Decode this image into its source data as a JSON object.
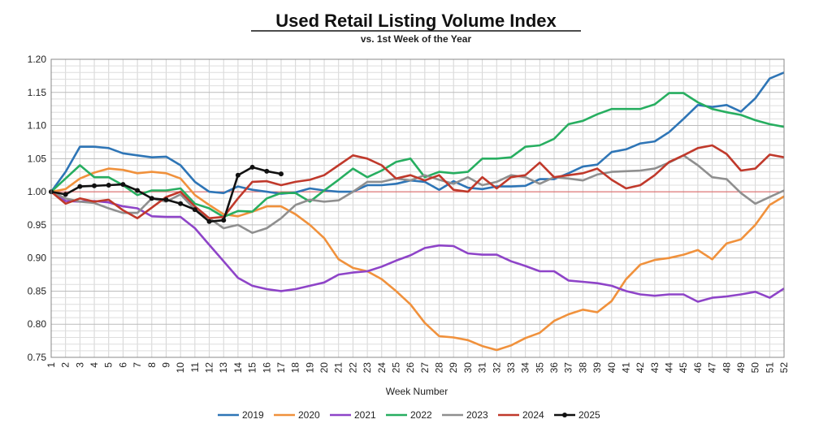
{
  "chart_data": {
    "type": "line",
    "title": "Used Retail Listing Volume Index",
    "subtitle": "vs. 1st Week of the Year",
    "xlabel": "Week Number",
    "ylabel": "",
    "xlim": [
      1,
      52
    ],
    "ylim": [
      0.75,
      1.2
    ],
    "y_ticks": [
      "0.75",
      "0.80",
      "0.85",
      "0.90",
      "0.95",
      "1.00",
      "1.05",
      "1.10",
      "1.15",
      "1.20"
    ],
    "x_ticks": [
      "1",
      "2",
      "3",
      "4",
      "5",
      "6",
      "7",
      "8",
      "9",
      "10",
      "11",
      "12",
      "13",
      "14",
      "15",
      "16",
      "17",
      "18",
      "19",
      "20",
      "21",
      "22",
      "23",
      "24",
      "25",
      "26",
      "27",
      "28",
      "29",
      "30",
      "31",
      "32",
      "33",
      "34",
      "35",
      "36",
      "37",
      "38",
      "39",
      "40",
      "41",
      "42",
      "43",
      "44",
      "45",
      "46",
      "47",
      "48",
      "49",
      "50",
      "51",
      "52"
    ],
    "grid": true,
    "reference_line": 1.0,
    "reference_color": "#e06060",
    "legend_position": "bottom",
    "series": [
      {
        "name": "2019",
        "color": "#2e75b6",
        "markers": false,
        "values": [
          1.0,
          1.03,
          1.068,
          1.068,
          1.066,
          1.058,
          1.055,
          1.052,
          1.053,
          1.04,
          1.015,
          1.0,
          0.998,
          1.008,
          1.003,
          1.0,
          0.997,
          0.999,
          1.005,
          1.002,
          1.0,
          1.0,
          1.01,
          1.01,
          1.012,
          1.017,
          1.015,
          1.003,
          1.016,
          1.006,
          1.004,
          1.008,
          1.008,
          1.009,
          1.019,
          1.019,
          1.028,
          1.038,
          1.041,
          1.06,
          1.064,
          1.073,
          1.076,
          1.09,
          1.11,
          1.131,
          1.128,
          1.131,
          1.121,
          1.141,
          1.171,
          1.18
        ]
      },
      {
        "name": "2020",
        "color": "#f0913c",
        "markers": false,
        "values": [
          1.0,
          1.004,
          1.02,
          1.029,
          1.035,
          1.033,
          1.028,
          1.03,
          1.028,
          1.02,
          0.995,
          0.98,
          0.966,
          0.963,
          0.97,
          0.978,
          0.978,
          0.966,
          0.95,
          0.93,
          0.898,
          0.885,
          0.88,
          0.868,
          0.85,
          0.83,
          0.802,
          0.782,
          0.78,
          0.776,
          0.767,
          0.761,
          0.768,
          0.779,
          0.787,
          0.805,
          0.815,
          0.822,
          0.818,
          0.835,
          0.868,
          0.89,
          0.897,
          0.9,
          0.905,
          0.912,
          0.898,
          0.922,
          0.928,
          0.95,
          0.98,
          0.993
        ]
      },
      {
        "name": "2021",
        "color": "#8e44c8",
        "markers": false,
        "values": [
          1.0,
          0.986,
          0.985,
          0.986,
          0.984,
          0.978,
          0.975,
          0.963,
          0.962,
          0.962,
          0.945,
          0.92,
          0.895,
          0.87,
          0.858,
          0.853,
          0.85,
          0.853,
          0.858,
          0.863,
          0.875,
          0.878,
          0.88,
          0.887,
          0.896,
          0.904,
          0.915,
          0.919,
          0.918,
          0.907,
          0.905,
          0.905,
          0.895,
          0.888,
          0.88,
          0.88,
          0.866,
          0.864,
          0.862,
          0.858,
          0.85,
          0.845,
          0.843,
          0.845,
          0.845,
          0.834,
          0.84,
          0.842,
          0.845,
          0.849,
          0.84,
          0.854
        ]
      },
      {
        "name": "2022",
        "color": "#27ae60",
        "markers": false,
        "values": [
          1.0,
          1.02,
          1.04,
          1.022,
          1.022,
          1.01,
          0.995,
          1.002,
          1.002,
          1.005,
          0.982,
          0.975,
          0.962,
          0.971,
          0.97,
          0.99,
          0.998,
          0.998,
          0.985,
          1.002,
          1.018,
          1.035,
          1.022,
          1.032,
          1.045,
          1.05,
          1.022,
          1.03,
          1.028,
          1.03,
          1.05,
          1.05,
          1.052,
          1.068,
          1.07,
          1.08,
          1.102,
          1.107,
          1.117,
          1.125,
          1.125,
          1.125,
          1.132,
          1.149,
          1.149,
          1.135,
          1.125,
          1.12,
          1.116,
          1.108,
          1.102,
          1.098
        ]
      },
      {
        "name": "2023",
        "color": "#8f8f8f",
        "markers": false,
        "values": [
          1.0,
          0.99,
          0.985,
          0.983,
          0.975,
          0.968,
          0.968,
          0.99,
          0.985,
          0.996,
          0.973,
          0.96,
          0.945,
          0.95,
          0.938,
          0.945,
          0.96,
          0.98,
          0.988,
          0.985,
          0.987,
          1.0,
          1.015,
          1.015,
          1.02,
          1.017,
          1.025,
          1.018,
          1.012,
          1.022,
          1.01,
          1.015,
          1.025,
          1.022,
          1.012,
          1.022,
          1.02,
          1.017,
          1.026,
          1.03,
          1.031,
          1.032,
          1.035,
          1.044,
          1.055,
          1.04,
          1.022,
          1.019,
          0.998,
          0.982,
          0.992,
          1.002
        ]
      },
      {
        "name": "2024",
        "color": "#c0392b",
        "markers": false,
        "values": [
          1.0,
          0.982,
          0.99,
          0.985,
          0.988,
          0.972,
          0.96,
          0.976,
          0.992,
          1.0,
          0.978,
          0.96,
          0.962,
          0.99,
          1.015,
          1.016,
          1.01,
          1.015,
          1.018,
          1.025,
          1.04,
          1.055,
          1.05,
          1.04,
          1.02,
          1.025,
          1.017,
          1.025,
          1.003,
          1.0,
          1.022,
          1.005,
          1.022,
          1.025,
          1.044,
          1.022,
          1.025,
          1.028,
          1.035,
          1.018,
          1.005,
          1.01,
          1.025,
          1.045,
          1.055,
          1.066,
          1.07,
          1.057,
          1.032,
          1.035,
          1.056,
          1.052
        ]
      },
      {
        "name": "2025",
        "color": "#111111",
        "markers": true,
        "values": [
          1.0,
          0.996,
          1.008,
          1.009,
          1.01,
          1.011,
          1.002,
          0.99,
          0.988,
          0.982,
          0.973,
          0.955,
          0.957,
          1.025,
          1.037,
          1.031,
          1.027
        ]
      }
    ]
  }
}
